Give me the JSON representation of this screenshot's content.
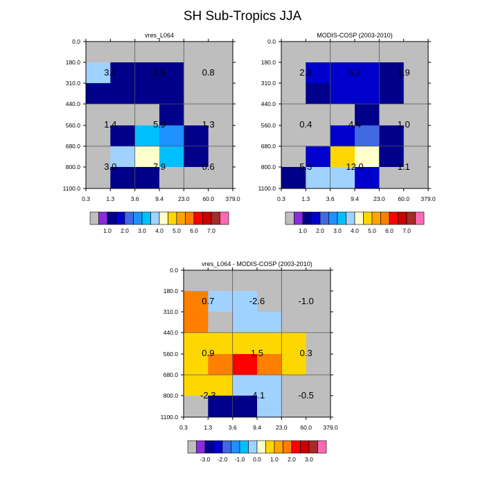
{
  "title": "SH Sub-Tropics JJA",
  "chart_data": [
    {
      "type": "heatmap",
      "title": "vres_L064",
      "x_tick_labels": [
        "0.3",
        "1.3",
        "3.6",
        "9.4",
        "23.0",
        "60.0",
        "379.0"
      ],
      "y_tick_labels": [
        "0.0",
        "180.0",
        "310.0",
        "440.0",
        "560.0",
        "680.0",
        "800.0",
        "1100.0"
      ],
      "values": [
        [
          0,
          0,
          0,
          0,
          0,
          0
        ],
        [
          3.2,
          0.5,
          0.7,
          0.6,
          0,
          0
        ],
        [
          0.6,
          0.5,
          0.6,
          0.6,
          0,
          0
        ],
        [
          0,
          0,
          0,
          0.6,
          0,
          0
        ],
        [
          0,
          0.8,
          2.6,
          2.2,
          0.7,
          0
        ],
        [
          0,
          3.1,
          3.8,
          2.6,
          0.5,
          0
        ],
        [
          0,
          0.6,
          0.6,
          0,
          0,
          0
        ]
      ],
      "annotations": [
        "3.1",
        "2.6",
        "0.8",
        "1.4",
        "5.9",
        "1.3",
        "3.0",
        "7.9",
        "0.6"
      ],
      "color_levels": [
        "1.0",
        "2.0",
        "3.0",
        "4.0",
        "5.0",
        "6.0",
        "7.0"
      ]
    },
    {
      "type": "heatmap",
      "title": "MODIS-COSP (2003-2010)",
      "x_tick_labels": [
        "0.3",
        "1.3",
        "3.6",
        "9.4",
        "23.0",
        "60.0",
        "379.0"
      ],
      "y_tick_labels": [
        "0.0",
        "180.0",
        "310.0",
        "440.0",
        "560.0",
        "680.0",
        "800.0",
        "1100.0"
      ],
      "values": [
        [
          0,
          0,
          0,
          0,
          0,
          0
        ],
        [
          0,
          1.3,
          1.3,
          1.3,
          0.7,
          0
        ],
        [
          0,
          0.7,
          1.3,
          1.3,
          0.7,
          0
        ],
        [
          0,
          0,
          0,
          0.7,
          0,
          0
        ],
        [
          0,
          0,
          1.3,
          1.7,
          0.6,
          0
        ],
        [
          0,
          1.2,
          4.3,
          3.7,
          0.6,
          0
        ],
        [
          0.6,
          3.3,
          3.3,
          1.3,
          0,
          0
        ]
      ],
      "annotations": [
        "2.3",
        "5.2",
        "1.9",
        "0.4",
        "4.4",
        "1.0",
        "5.3",
        "12.0",
        "1.1"
      ],
      "color_levels": [
        "1.0",
        "2.0",
        "3.0",
        "4.0",
        "5.0",
        "6.0",
        "7.0"
      ]
    },
    {
      "type": "heatmap",
      "title": "vres_L064 - MODIS-COSP (2003-2010)",
      "x_tick_labels": [
        "0.3",
        "1.3",
        "3.6",
        "9.4",
        "23.0",
        "60.0",
        "379.0"
      ],
      "y_tick_labels": [
        "0.0",
        "180.0",
        "310.0",
        "440.0",
        "560.0",
        "680.0",
        "800.0",
        "1100.0"
      ],
      "values": [
        [
          0,
          0,
          0,
          0,
          0,
          0
        ],
        [
          1.2,
          -0.8,
          -0.8,
          0,
          0,
          0
        ],
        [
          1.2,
          0,
          -0.8,
          -0.8,
          0,
          0
        ],
        [
          0.2,
          0.2,
          0.2,
          0.2,
          0.2,
          0
        ],
        [
          0.2,
          1.2,
          1.8,
          1.2,
          0.2,
          0
        ],
        [
          0.2,
          0.2,
          -0.8,
          -0.8,
          0,
          0
        ],
        [
          0,
          -3.3,
          -3.3,
          -0.8,
          0,
          0
        ]
      ],
      "annotations": [
        "0.7",
        "-2.6",
        "-1.0",
        "0.9",
        "1.5",
        "0.3",
        "-2.3",
        "-4.1",
        "-0.5"
      ],
      "color_levels": [
        "-3.0",
        "-2.0",
        "-1.0",
        "0.0",
        "1.0",
        "2.0",
        "3.0"
      ]
    }
  ],
  "colors": {
    "missing": "#bebebe",
    "abs_palette": [
      "#bebebe",
      "#8a2be2",
      "#00008b",
      "#0000cd",
      "#4169e1",
      "#1e90ff",
      "#00bfff",
      "#a0d2ff",
      "#ffffcc",
      "#ffd700",
      "#ffa500",
      "#ff7f00",
      "#ff0000",
      "#cd0000",
      "#a52a2a",
      "#ff69b4"
    ],
    "abs_bounds": [
      0.5,
      1,
      1.5,
      2,
      2.5,
      3,
      3.5,
      4,
      4.5,
      5,
      5.5,
      6,
      6.5,
      7
    ],
    "diff_palette": [
      "#bebebe",
      "#8a2be2",
      "#00008b",
      "#0000cd",
      "#4169e1",
      "#1e90ff",
      "#00bfff",
      "#a0d2ff",
      "#ffffcc",
      "#ffd700",
      "#ffa500",
      "#ff7f00",
      "#ff0000",
      "#cd0000",
      "#a52a2a",
      "#ff69b4"
    ],
    "diff_bounds": [
      -3.5,
      -3,
      -2.5,
      -2,
      -1.5,
      -1,
      -0.5,
      0,
      0.5,
      1,
      1.5,
      2,
      2.5,
      3
    ]
  }
}
